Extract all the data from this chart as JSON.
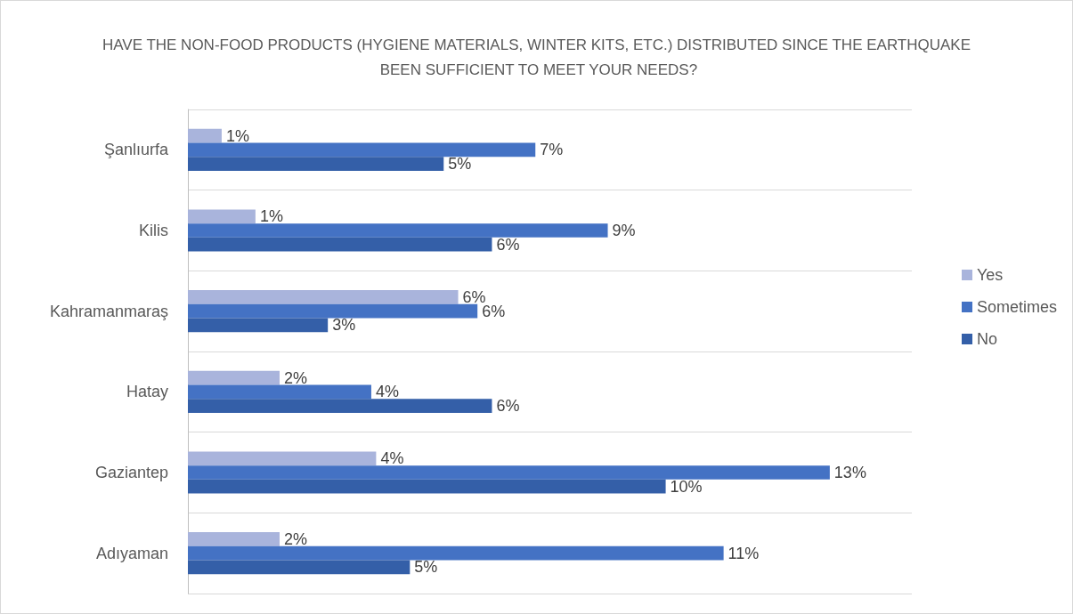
{
  "chart_data": {
    "type": "bar",
    "orientation": "horizontal",
    "title": "HAVE THE NON-FOOD PRODUCTS (HYGIENE MATERIALS, WINTER KITS, ETC.) DISTRIBUTED SINCE THE EARTHQUAKE BEEN SUFFICIENT TO MEET YOUR NEEDS?",
    "categories": [
      "Şanlıurfa",
      "Kilis",
      "Kahramanmaraş",
      "Hatay",
      "Gaziantep",
      "Adıyaman"
    ],
    "series": [
      {
        "name": "Yes",
        "color": "#a9b4dc",
        "values": [
          0.7,
          1.4,
          5.6,
          1.9,
          3.9,
          1.9
        ],
        "value_labels": [
          "1%",
          "1%",
          "6%",
          "2%",
          "4%",
          "2%"
        ]
      },
      {
        "name": "Sometimes",
        "color": "#4472c4",
        "values": [
          7.2,
          8.7,
          6.0,
          3.8,
          13.3,
          11.1
        ],
        "value_labels": [
          "7%",
          "9%",
          "6%",
          "4%",
          "13%",
          "11%"
        ]
      },
      {
        "name": "No",
        "color": "#345fa8",
        "values": [
          5.3,
          6.3,
          2.9,
          6.3,
          9.9,
          4.6
        ],
        "value_labels": [
          "5%",
          "6%",
          "3%",
          "6%",
          "10%",
          "5%"
        ]
      }
    ],
    "grid": "y",
    "legend": "right",
    "tick_labels": "y"
  }
}
